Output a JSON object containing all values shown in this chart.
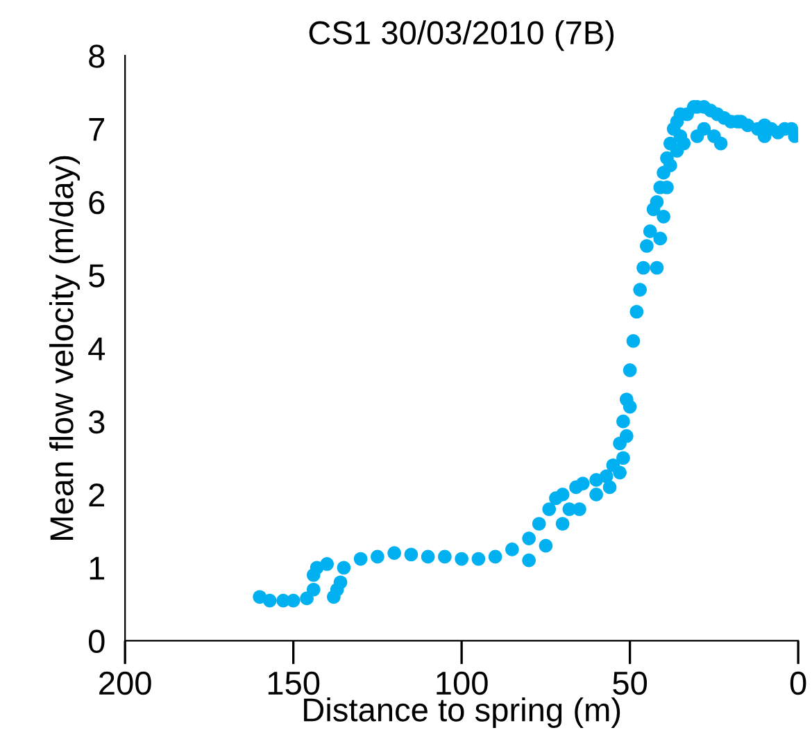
{
  "chart_data": {
    "type": "scatter",
    "title": "CS1 30/03/2010 (7B)",
    "xlabel": "Distance to spring (m)",
    "ylabel": "Mean flow velocity (m/day)",
    "xlim": [
      200,
      0
    ],
    "xticks": [
      200,
      150,
      100,
      50,
      0
    ],
    "ylim": [
      0,
      8
    ],
    "yticks": [
      0,
      1,
      2,
      3,
      4,
      5,
      6,
      7,
      8
    ],
    "grid": false,
    "legend": false,
    "marker": "circle",
    "series": [
      {
        "color": "#00b0f0",
        "x": [
          160,
          157,
          153,
          150,
          146,
          144,
          144,
          143,
          140,
          138,
          137,
          136,
          135,
          130,
          125,
          120,
          115,
          110,
          105,
          100,
          95,
          90,
          85,
          80,
          77,
          74,
          72,
          70,
          68,
          66,
          64,
          60,
          57,
          55,
          53,
          52,
          51,
          50,
          49,
          48,
          47,
          46,
          45,
          44,
          43,
          42,
          41,
          40,
          39,
          38,
          37,
          36,
          35,
          33,
          31,
          30,
          28,
          26,
          24,
          22,
          20,
          18,
          15,
          12,
          10,
          8,
          6,
          4,
          2,
          1,
          42,
          41,
          40,
          39,
          38,
          36,
          35,
          34,
          30,
          28,
          25,
          23,
          17,
          10,
          80,
          75,
          70,
          65,
          60,
          56,
          53,
          52,
          51,
          50
        ],
        "values": [
          0.6,
          0.55,
          0.55,
          0.55,
          0.58,
          0.7,
          0.9,
          1.0,
          1.05,
          0.6,
          0.7,
          0.8,
          1.0,
          1.12,
          1.15,
          1.2,
          1.18,
          1.15,
          1.15,
          1.12,
          1.12,
          1.15,
          1.25,
          1.4,
          1.6,
          1.8,
          1.95,
          2.0,
          1.8,
          2.1,
          2.15,
          2.2,
          2.25,
          2.4,
          2.7,
          3.0,
          3.3,
          3.7,
          4.1,
          4.5,
          4.8,
          5.1,
          5.4,
          5.6,
          5.9,
          6.0,
          6.2,
          6.4,
          6.6,
          6.8,
          7.0,
          7.1,
          7.2,
          7.2,
          7.3,
          7.3,
          7.3,
          7.25,
          7.2,
          7.15,
          7.1,
          7.1,
          7.05,
          7.0,
          7.05,
          7.0,
          6.95,
          7.0,
          7.0,
          6.9,
          5.1,
          5.5,
          5.8,
          6.2,
          6.5,
          6.7,
          6.9,
          6.8,
          6.9,
          7.0,
          6.9,
          6.8,
          7.1,
          6.9,
          1.1,
          1.3,
          1.6,
          1.8,
          2.0,
          2.1,
          2.3,
          2.5,
          2.8,
          3.2
        ]
      }
    ]
  }
}
